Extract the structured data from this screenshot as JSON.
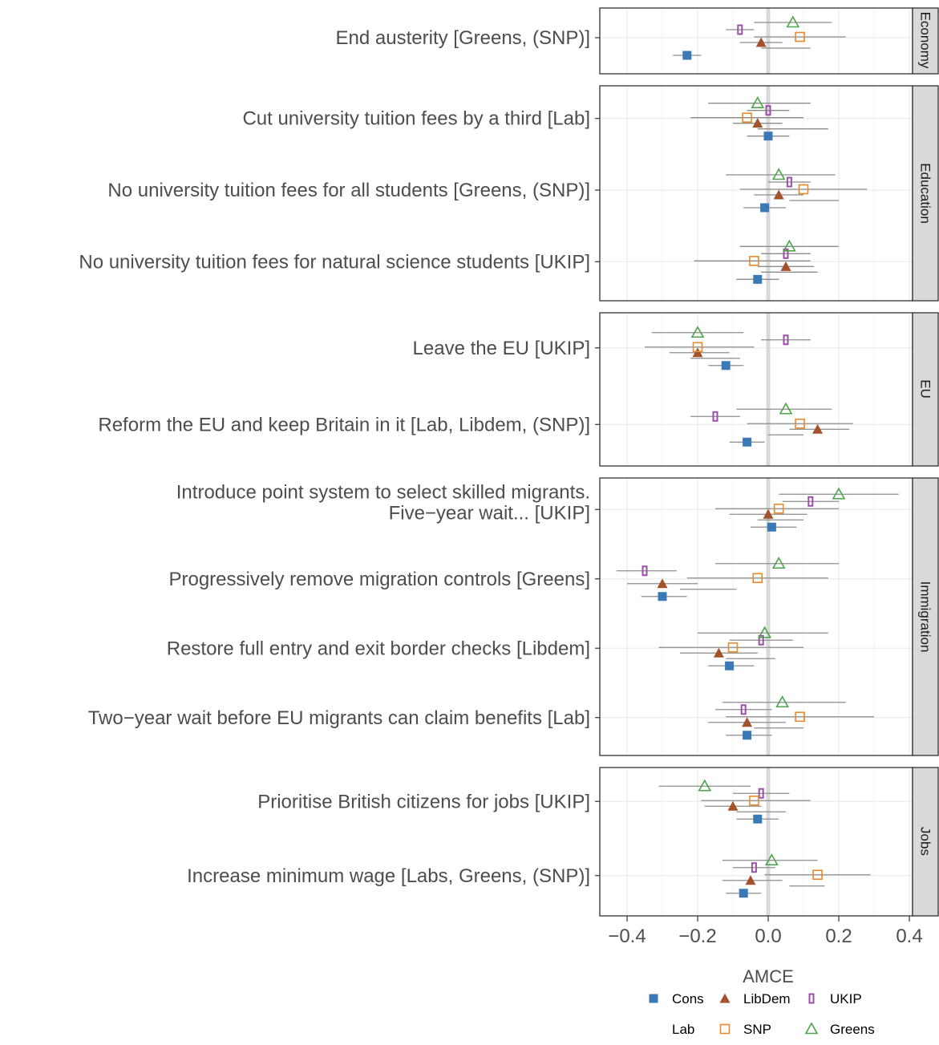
{
  "chart_data": {
    "type": "scatter",
    "xlabel": "AMCE",
    "xlim": [
      -0.48,
      0.42
    ],
    "x_ticks": [
      -0.4,
      -0.2,
      0.0,
      0.2,
      0.4
    ],
    "x_tick_labels": [
      "−0.4",
      "−0.2",
      "0.0",
      "0.2",
      "0.4"
    ],
    "reference_line": 0,
    "grid": true,
    "legend_position": "bottom",
    "series": [
      {
        "name": "Cons",
        "color": "#3a78b6",
        "marker": "filled-square"
      },
      {
        "name": "LibDem",
        "color": "#a4522c",
        "marker": "filled-triangle"
      },
      {
        "name": "UKIP",
        "color": "#9b4fa8",
        "marker": "open-narrow-rect"
      },
      {
        "name": "Lab",
        "color": "#9a9a9a",
        "marker": "none"
      },
      {
        "name": "SNP",
        "color": "#e8892b",
        "marker": "open-square"
      },
      {
        "name": "Greens",
        "color": "#4aa54a",
        "marker": "open-triangle"
      }
    ],
    "panels": [
      {
        "strip": "Economy",
        "items": [
          {
            "label_lines": [
              "End austerity  [Greens, (SNP)]"
            ],
            "points": [
              {
                "series": "Cons",
                "x": -0.23,
                "lo": -0.27,
                "hi": -0.19
              },
              {
                "series": "LibDem",
                "x": -0.02,
                "lo": -0.08,
                "hi": 0.04
              },
              {
                "series": "UKIP",
                "x": -0.08,
                "lo": -0.12,
                "hi": -0.04
              },
              {
                "series": "Lab",
                "x": 0.05,
                "lo": -0.02,
                "hi": 0.12
              },
              {
                "series": "SNP",
                "x": 0.09,
                "lo": -0.04,
                "hi": 0.22
              },
              {
                "series": "Greens",
                "x": 0.07,
                "lo": -0.04,
                "hi": 0.18
              }
            ]
          }
        ]
      },
      {
        "strip": "Education",
        "items": [
          {
            "label_lines": [
              "Cut university tuition fees by a third [Lab]"
            ],
            "points": [
              {
                "series": "Cons",
                "x": 0.0,
                "lo": -0.06,
                "hi": 0.06
              },
              {
                "series": "LibDem",
                "x": -0.03,
                "lo": -0.1,
                "hi": 0.04
              },
              {
                "series": "UKIP",
                "x": 0.0,
                "lo": -0.06,
                "hi": 0.06
              },
              {
                "series": "Lab",
                "x": 0.07,
                "lo": -0.03,
                "hi": 0.17
              },
              {
                "series": "SNP",
                "x": -0.06,
                "lo": -0.22,
                "hi": 0.1
              },
              {
                "series": "Greens",
                "x": -0.03,
                "lo": -0.17,
                "hi": 0.12
              }
            ]
          },
          {
            "label_lines": [
              "No university tuition fees for all students [Greens, (SNP)]"
            ],
            "points": [
              {
                "series": "Cons",
                "x": -0.01,
                "lo": -0.07,
                "hi": 0.05
              },
              {
                "series": "LibDem",
                "x": 0.03,
                "lo": -0.04,
                "hi": 0.1
              },
              {
                "series": "UKIP",
                "x": 0.06,
                "lo": 0.0,
                "hi": 0.12
              },
              {
                "series": "Lab",
                "x": 0.13,
                "lo": 0.06,
                "hi": 0.2
              },
              {
                "series": "SNP",
                "x": 0.1,
                "lo": -0.08,
                "hi": 0.28
              },
              {
                "series": "Greens",
                "x": 0.03,
                "lo": -0.12,
                "hi": 0.19
              }
            ]
          },
          {
            "label_lines": [
              "No university tuition fees for natural science students [UKIP]"
            ],
            "points": [
              {
                "series": "Cons",
                "x": -0.03,
                "lo": -0.09,
                "hi": 0.03
              },
              {
                "series": "LibDem",
                "x": 0.05,
                "lo": -0.03,
                "hi": 0.13
              },
              {
                "series": "UKIP",
                "x": 0.05,
                "lo": -0.02,
                "hi": 0.12
              },
              {
                "series": "Lab",
                "x": 0.06,
                "lo": -0.02,
                "hi": 0.14
              },
              {
                "series": "SNP",
                "x": -0.04,
                "lo": -0.21,
                "hi": 0.12
              },
              {
                "series": "Greens",
                "x": 0.06,
                "lo": -0.08,
                "hi": 0.2
              }
            ]
          }
        ]
      },
      {
        "strip": "EU",
        "items": [
          {
            "label_lines": [
              "Leave the EU [UKIP]"
            ],
            "points": [
              {
                "series": "Cons",
                "x": -0.12,
                "lo": -0.17,
                "hi": -0.07
              },
              {
                "series": "LibDem",
                "x": -0.2,
                "lo": -0.28,
                "hi": -0.11
              },
              {
                "series": "UKIP",
                "x": 0.05,
                "lo": -0.02,
                "hi": 0.12
              },
              {
                "series": "Lab",
                "x": -0.15,
                "lo": -0.22,
                "hi": -0.08
              },
              {
                "series": "SNP",
                "x": -0.2,
                "lo": -0.35,
                "hi": -0.04
              },
              {
                "series": "Greens",
                "x": -0.2,
                "lo": -0.33,
                "hi": -0.07
              }
            ]
          },
          {
            "label_lines": [
              "Reform the EU and keep Britain in it [Lab, Libdem, (SNP)]"
            ],
            "points": [
              {
                "series": "Cons",
                "x": -0.06,
                "lo": -0.11,
                "hi": -0.01
              },
              {
                "series": "LibDem",
                "x": 0.14,
                "lo": 0.06,
                "hi": 0.23
              },
              {
                "series": "UKIP",
                "x": -0.15,
                "lo": -0.22,
                "hi": -0.08
              },
              {
                "series": "Lab",
                "x": 0.05,
                "lo": 0.0,
                "hi": 0.1
              },
              {
                "series": "SNP",
                "x": 0.09,
                "lo": -0.06,
                "hi": 0.24
              },
              {
                "series": "Greens",
                "x": 0.05,
                "lo": -0.09,
                "hi": 0.18
              }
            ]
          }
        ]
      },
      {
        "strip": "Immigration",
        "items": [
          {
            "label_lines": [
              "Introduce point system to select skilled migrants.",
              "Five−year wait... [UKIP]"
            ],
            "points": [
              {
                "series": "Cons",
                "x": 0.01,
                "lo": -0.05,
                "hi": 0.08
              },
              {
                "series": "LibDem",
                "x": 0.0,
                "lo": -0.11,
                "hi": 0.11
              },
              {
                "series": "UKIP",
                "x": 0.12,
                "lo": 0.04,
                "hi": 0.2
              },
              {
                "series": "Lab",
                "x": 0.04,
                "lo": -0.03,
                "hi": 0.1
              },
              {
                "series": "SNP",
                "x": 0.03,
                "lo": -0.15,
                "hi": 0.2
              },
              {
                "series": "Greens",
                "x": 0.2,
                "lo": 0.03,
                "hi": 0.37
              }
            ]
          },
          {
            "label_lines": [
              "Progressively remove migration controls [Greens]"
            ],
            "points": [
              {
                "series": "Cons",
                "x": -0.3,
                "lo": -0.36,
                "hi": -0.23
              },
              {
                "series": "LibDem",
                "x": -0.3,
                "lo": -0.4,
                "hi": -0.2
              },
              {
                "series": "UKIP",
                "x": -0.35,
                "lo": -0.43,
                "hi": -0.26
              },
              {
                "series": "Lab",
                "x": -0.17,
                "lo": -0.25,
                "hi": -0.09
              },
              {
                "series": "SNP",
                "x": -0.03,
                "lo": -0.23,
                "hi": 0.17
              },
              {
                "series": "Greens",
                "x": 0.03,
                "lo": -0.15,
                "hi": 0.2
              }
            ]
          },
          {
            "label_lines": [
              "Restore full entry and exit border checks [Libdem]"
            ],
            "points": [
              {
                "series": "Cons",
                "x": -0.11,
                "lo": -0.17,
                "hi": -0.04
              },
              {
                "series": "LibDem",
                "x": -0.14,
                "lo": -0.25,
                "hi": -0.03
              },
              {
                "series": "UKIP",
                "x": -0.02,
                "lo": -0.11,
                "hi": 0.07
              },
              {
                "series": "Lab",
                "x": -0.05,
                "lo": -0.12,
                "hi": 0.02
              },
              {
                "series": "SNP",
                "x": -0.1,
                "lo": -0.31,
                "hi": 0.1
              },
              {
                "series": "Greens",
                "x": -0.01,
                "lo": -0.2,
                "hi": 0.17
              }
            ]
          },
          {
            "label_lines": [
              "Two−year wait before EU migrants can claim benefits [Lab]"
            ],
            "points": [
              {
                "series": "Cons",
                "x": -0.06,
                "lo": -0.12,
                "hi": 0.01
              },
              {
                "series": "LibDem",
                "x": -0.06,
                "lo": -0.17,
                "hi": 0.05
              },
              {
                "series": "UKIP",
                "x": -0.07,
                "lo": -0.15,
                "hi": 0.01
              },
              {
                "series": "Lab",
                "x": 0.03,
                "lo": -0.04,
                "hi": 0.1
              },
              {
                "series": "SNP",
                "x": 0.09,
                "lo": -0.12,
                "hi": 0.3
              },
              {
                "series": "Greens",
                "x": 0.04,
                "lo": -0.13,
                "hi": 0.22
              }
            ]
          }
        ]
      },
      {
        "strip": "Jobs",
        "items": [
          {
            "label_lines": [
              "Prioritise British citizens for jobs [UKIP]"
            ],
            "points": [
              {
                "series": "Cons",
                "x": -0.03,
                "lo": -0.09,
                "hi": 0.03
              },
              {
                "series": "LibDem",
                "x": -0.1,
                "lo": -0.18,
                "hi": -0.02
              },
              {
                "series": "UKIP",
                "x": -0.02,
                "lo": -0.1,
                "hi": 0.06
              },
              {
                "series": "Lab",
                "x": -0.02,
                "lo": -0.09,
                "hi": 0.05
              },
              {
                "series": "SNP",
                "x": -0.04,
                "lo": -0.19,
                "hi": 0.12
              },
              {
                "series": "Greens",
                "x": -0.18,
                "lo": -0.31,
                "hi": -0.05
              }
            ]
          },
          {
            "label_lines": [
              "Increase minimum wage [Labs, Greens, (SNP)]"
            ],
            "points": [
              {
                "series": "Cons",
                "x": -0.07,
                "lo": -0.12,
                "hi": -0.02
              },
              {
                "series": "LibDem",
                "x": -0.05,
                "lo": -0.13,
                "hi": 0.04
              },
              {
                "series": "UKIP",
                "x": -0.04,
                "lo": -0.1,
                "hi": 0.02
              },
              {
                "series": "Lab",
                "x": 0.11,
                "lo": 0.06,
                "hi": 0.16
              },
              {
                "series": "SNP",
                "x": 0.14,
                "lo": -0.01,
                "hi": 0.29
              },
              {
                "series": "Greens",
                "x": 0.01,
                "lo": -0.13,
                "hi": 0.14
              }
            ]
          }
        ]
      }
    ]
  }
}
